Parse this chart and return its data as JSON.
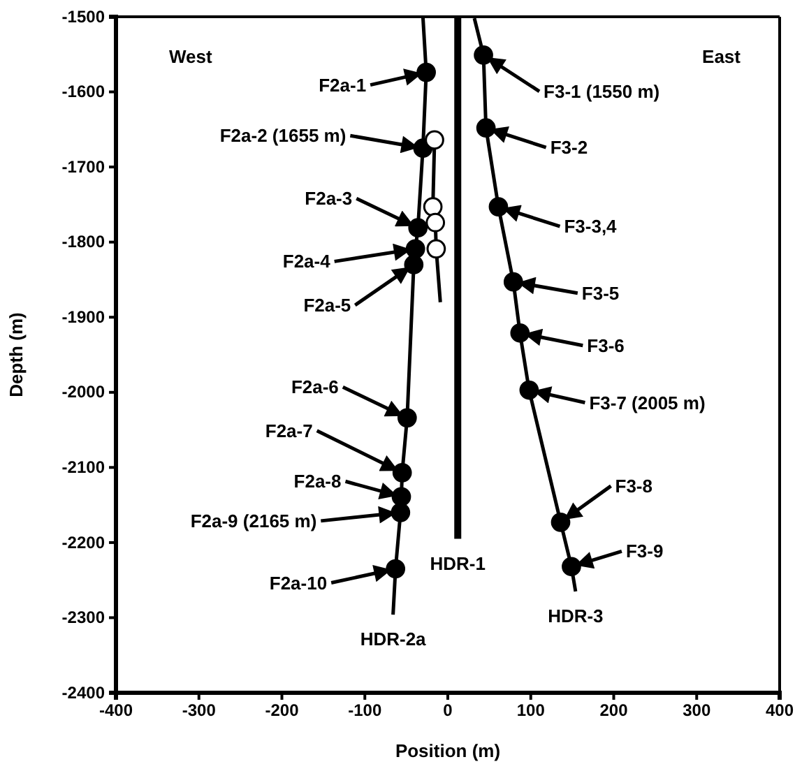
{
  "chart_data": {
    "type": "line",
    "xlabel": "Position (m)",
    "ylabel": "Depth (m)",
    "xlim": [
      -400,
      400
    ],
    "xticks": [
      -400,
      -300,
      -200,
      -100,
      0,
      100,
      200,
      300,
      400
    ],
    "ylim": [
      -2400,
      -1500
    ],
    "yticks": [
      -2400,
      -2300,
      -2200,
      -2100,
      -2000,
      -1900,
      -1800,
      -1700,
      -1600,
      -1500
    ],
    "grid": false,
    "marker": "none",
    "line_style": "solid",
    "series": [
      {
        "name": "HDR-2a",
        "color": "#000000",
        "x": [
          -30,
          -26,
          -30,
          -36,
          -39,
          -41,
          -49,
          -55,
          -56,
          -57,
          -63,
          -66
        ],
        "values": [
          -1500,
          -1574,
          -1675,
          -1781,
          -1809,
          -1830,
          -2034,
          -2107,
          -2139,
          -2160,
          -2235,
          -2296
        ]
      },
      {
        "color": "#000000",
        "x": [
          -30,
          -16,
          -18,
          -15,
          -14,
          -9
        ],
        "values": [
          -1675,
          -1664,
          -1753,
          -1774,
          -1809,
          -1880
        ]
      },
      {
        "name": "HDR-1",
        "color": "#000000",
        "x": [
          12,
          12
        ],
        "values": [
          -1500,
          -2195
        ]
      },
      {
        "name": "HDR-3",
        "color": "#000000",
        "x": [
          32,
          43,
          46,
          61,
          79,
          87,
          98,
          136,
          149,
          154
        ],
        "values": [
          -1502,
          -1551,
          -1648,
          -1753,
          -1853,
          -1921,
          -1997,
          -2173,
          -2232,
          -2265
        ]
      },
      {
        "type": "scatter",
        "marker": "circle",
        "color": "#000000",
        "x": [
          -26,
          -30,
          -36,
          -39,
          -41,
          -49,
          -55,
          -56,
          -57,
          -63,
          43,
          46,
          61,
          79,
          87,
          98,
          136,
          149
        ],
        "values": [
          -1574,
          -1675,
          -1781,
          -1809,
          -1830,
          -2034,
          -2107,
          -2139,
          -2160,
          -2235,
          -1551,
          -1648,
          -1753,
          -1853,
          -1921,
          -1997,
          -2173,
          -2232
        ]
      },
      {
        "type": "scatter",
        "marker": "circle",
        "color": "#ffffff",
        "x": [
          -16,
          -18,
          -15,
          -14
        ],
        "values": [
          -1664,
          -1753,
          -1774,
          -1809
        ]
      }
    ],
    "annotations": [
      "West",
      "East",
      {
        "text": "F2a-1",
        "x": -26,
        "y": -1574
      },
      {
        "text": "F2a-2 (1655 m)",
        "x": -30,
        "y": -1675
      },
      {
        "text": "F2a-3",
        "x": -36,
        "y": -1781
      },
      {
        "text": "F2a-4",
        "x": -39,
        "y": -1809
      },
      {
        "text": "F2a-5",
        "x": -41,
        "y": -1830
      },
      {
        "text": "F2a-6",
        "x": -49,
        "y": -2034
      },
      {
        "text": "F2a-7",
        "x": -55,
        "y": -2107
      },
      {
        "text": "F2a-8",
        "x": -56,
        "y": -2139
      },
      {
        "text": "F2a-9 (2165 m)",
        "x": -57,
        "y": -2160
      },
      {
        "text": "F2a-10",
        "x": -63,
        "y": -2235
      },
      {
        "text": "F3-1 (1550 m)",
        "x": 43,
        "y": -1551
      },
      {
        "text": "F3-2",
        "x": 46,
        "y": -1648
      },
      {
        "text": "F3-3,4",
        "x": 61,
        "y": -1753
      },
      {
        "text": "F3-5",
        "x": 79,
        "y": -1853
      },
      {
        "text": "F3-6",
        "x": 87,
        "y": -1921
      },
      {
        "text": "F3-7 (2005 m)",
        "x": 98,
        "y": -1997
      },
      {
        "text": "F3-8",
        "x": 136,
        "y": -2173
      },
      {
        "text": "F3-9",
        "x": 149,
        "y": -2232
      }
    ]
  }
}
